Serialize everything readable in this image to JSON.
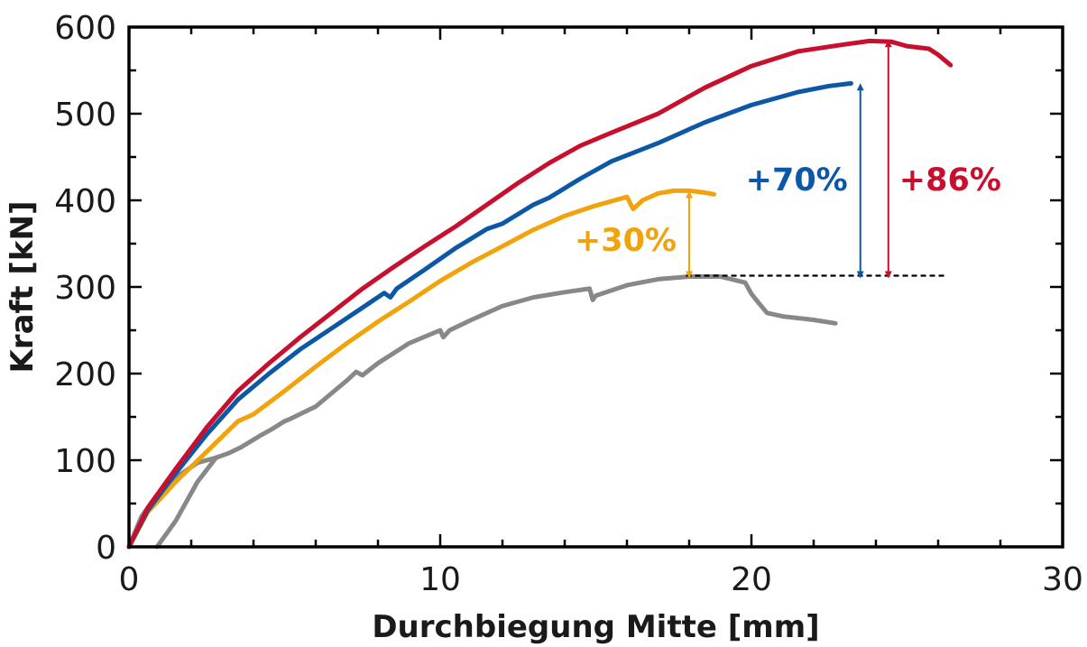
{
  "chart_data": {
    "type": "line",
    "title": "",
    "xlabel": "Durchbiegung Mitte [mm]",
    "ylabel": "Kraft [kN]",
    "xlim": [
      0,
      30
    ],
    "ylim": [
      0,
      600
    ],
    "xticks": [
      0,
      10,
      20,
      30
    ],
    "yticks": [
      0,
      100,
      200,
      300,
      400,
      500,
      600
    ],
    "grid": false,
    "legend": "none",
    "series": [
      {
        "color": "#888888",
        "x": [
          0,
          0.4,
          0.9,
          1.5,
          2.2,
          2.8,
          3.2,
          3.6,
          4.2,
          4.6,
          5.0,
          5.2,
          6.0,
          7.0,
          7.3,
          7.5,
          8.0,
          9.0,
          10.0,
          10.1,
          10.3,
          11.0,
          12.0,
          13.0,
          14.0,
          14.8,
          14.9,
          15.0,
          16.0,
          17.0,
          18.0,
          19.0,
          19.8,
          20.0,
          20.2,
          20.5,
          21.0,
          22.0,
          22.7
        ],
        "y": [
          0,
          35,
          60,
          80,
          97,
          103,
          108,
          115,
          128,
          136,
          145,
          148,
          162,
          192,
          202,
          198,
          212,
          235,
          250,
          242,
          250,
          262,
          278,
          288,
          294,
          298,
          285,
          290,
          302,
          309,
          312,
          312,
          305,
          292,
          283,
          270,
          266,
          262,
          258
        ]
      },
      {
        "color": "#888888",
        "x": [
          0.9,
          1.5,
          2.2,
          2.8
        ],
        "y": [
          0,
          30,
          75,
          103
        ]
      },
      {
        "color": "#f0a30a",
        "x": [
          0,
          0.6,
          1.5,
          2.5,
          3.5,
          4.0,
          5.0,
          6.0,
          7.0,
          8.0,
          9.0,
          10.0,
          11.0,
          12.0,
          13.0,
          14.0,
          15.0,
          16.0,
          16.2,
          16.5,
          17.0,
          17.5,
          18.0,
          18.5,
          18.8
        ],
        "y": [
          0,
          40,
          75,
          110,
          145,
          153,
          180,
          208,
          235,
          260,
          283,
          307,
          328,
          347,
          366,
          382,
          394,
          404,
          390,
          400,
          408,
          411,
          411,
          409,
          407
        ]
      },
      {
        "color": "#0c58a6",
        "x": [
          0,
          0.6,
          1.5,
          2.5,
          3.5,
          4.5,
          5.5,
          6.5,
          7.5,
          8.2,
          8.4,
          8.6,
          9.5,
          10.5,
          11.5,
          12.0,
          13.0,
          13.5,
          14.5,
          15.5,
          17.0,
          18.5,
          20.0,
          21.5,
          22.5,
          23.2
        ],
        "y": [
          0,
          42,
          85,
          130,
          170,
          200,
          228,
          252,
          276,
          293,
          288,
          298,
          320,
          345,
          367,
          373,
          395,
          403,
          425,
          445,
          466,
          490,
          510,
          525,
          532,
          535
        ]
      },
      {
        "color": "#c8102e",
        "x": [
          0,
          0.6,
          1.5,
          2.5,
          3.5,
          4.5,
          5.5,
          6.5,
          7.5,
          8.5,
          9.5,
          10.5,
          11.5,
          12.5,
          13.5,
          14.5,
          15.5,
          17.0,
          18.5,
          20.0,
          21.5,
          23.0,
          23.8,
          24.5,
          25.0,
          25.7,
          26.0,
          26.4
        ],
        "y": [
          0,
          45,
          90,
          138,
          180,
          212,
          242,
          270,
          298,
          323,
          347,
          370,
          395,
          420,
          443,
          463,
          478,
          500,
          530,
          555,
          572,
          580,
          584,
          583,
          578,
          575,
          568,
          556
        ]
      }
    ],
    "reference_line": {
      "y": 313,
      "x_start": 17.9,
      "x_end": 26.3,
      "style": "dashed",
      "color": "#000000"
    },
    "annotations": [
      {
        "text": "+30%",
        "color": "#f0a30a",
        "arrow_x": 18.0,
        "y_from": 313,
        "y_to": 408
      },
      {
        "text": "+70%",
        "color": "#0c58a6",
        "arrow_x": 23.5,
        "y_from": 313,
        "y_to": 532
      },
      {
        "text": "+86%",
        "color": "#c8102e",
        "arrow_x": 24.4,
        "y_from": 313,
        "y_to": 582
      }
    ]
  }
}
